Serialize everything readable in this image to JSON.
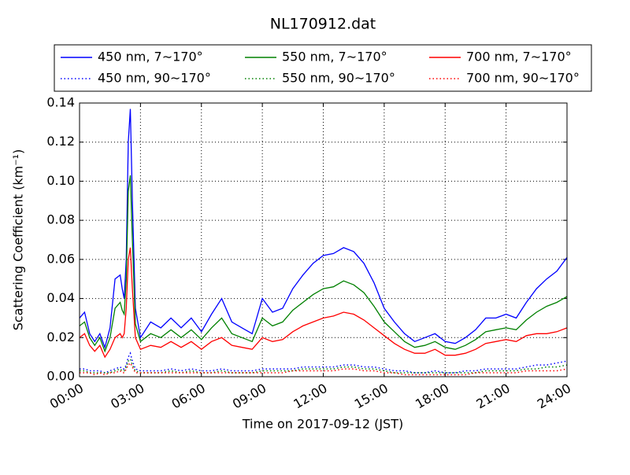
{
  "chart_data": {
    "type": "line",
    "title": "NL170912.dat",
    "xlabel": "Time on 2017-09-12 (JST)",
    "ylabel": "Scattering Coefficient (km⁻¹)",
    "x": [
      0,
      0.25,
      0.5,
      0.75,
      1.0,
      1.25,
      1.5,
      1.75,
      2.0,
      2.1,
      2.2,
      2.3,
      2.4,
      2.5,
      2.6,
      2.75,
      3.0,
      3.5,
      4.0,
      4.5,
      5.0,
      5.5,
      6.0,
      6.5,
      7.0,
      7.5,
      8.0,
      8.5,
      9.0,
      9.5,
      10.0,
      10.5,
      11.0,
      11.5,
      12.0,
      12.5,
      13.0,
      13.5,
      14.0,
      14.5,
      15.0,
      15.5,
      16.0,
      16.5,
      17.0,
      17.5,
      18.0,
      18.5,
      19.0,
      19.5,
      20.0,
      20.5,
      21.0,
      21.5,
      22.0,
      22.5,
      23.0,
      23.5,
      24.0
    ],
    "xlim": [
      0,
      24
    ],
    "xticks": [
      {
        "value": 0,
        "label": "00:00"
      },
      {
        "value": 3,
        "label": "03:00"
      },
      {
        "value": 6,
        "label": "06:00"
      },
      {
        "value": 9,
        "label": "09:00"
      },
      {
        "value": 12,
        "label": "12:00"
      },
      {
        "value": 15,
        "label": "15:00"
      },
      {
        "value": 18,
        "label": "18:00"
      },
      {
        "value": 21,
        "label": "21:00"
      },
      {
        "value": 24,
        "label": "24:00"
      }
    ],
    "ylim": [
      0,
      0.14
    ],
    "yticks": [
      {
        "value": 0,
        "label": "0.00"
      },
      0.02,
      0.04,
      0.06,
      0.08,
      {
        "value": 0.1,
        "label": "0.10"
      },
      0.12,
      0.14
    ],
    "grid": true,
    "legend": "top",
    "series": [
      {
        "name": "450 nm, 7∼170°",
        "color": "#0000ff",
        "linestyle": "solid",
        "values": [
          0.03,
          0.033,
          0.022,
          0.018,
          0.022,
          0.015,
          0.025,
          0.05,
          0.052,
          0.045,
          0.04,
          0.06,
          0.12,
          0.137,
          0.09,
          0.035,
          0.02,
          0.028,
          0.025,
          0.03,
          0.025,
          0.03,
          0.023,
          0.032,
          0.04,
          0.028,
          0.025,
          0.022,
          0.04,
          0.033,
          0.035,
          0.045,
          0.052,
          0.058,
          0.062,
          0.063,
          0.066,
          0.064,
          0.058,
          0.048,
          0.035,
          0.028,
          0.022,
          0.018,
          0.02,
          0.022,
          0.018,
          0.017,
          0.02,
          0.024,
          0.03,
          0.03,
          0.032,
          0.03,
          0.038,
          0.045,
          0.05,
          0.054,
          0.061
        ]
      },
      {
        "name": "450 nm, 90∼170°",
        "color": "#0000ff",
        "linestyle": "dotted",
        "values": [
          0.004,
          0.004,
          0.003,
          0.003,
          0.003,
          0.002,
          0.003,
          0.004,
          0.005,
          0.004,
          0.004,
          0.006,
          0.01,
          0.012,
          0.008,
          0.004,
          0.003,
          0.003,
          0.003,
          0.004,
          0.003,
          0.004,
          0.003,
          0.003,
          0.004,
          0.003,
          0.003,
          0.003,
          0.004,
          0.004,
          0.004,
          0.004,
          0.005,
          0.005,
          0.005,
          0.005,
          0.006,
          0.006,
          0.005,
          0.005,
          0.004,
          0.003,
          0.003,
          0.002,
          0.002,
          0.003,
          0.002,
          0.002,
          0.003,
          0.003,
          0.004,
          0.004,
          0.004,
          0.004,
          0.005,
          0.006,
          0.006,
          0.007,
          0.008
        ]
      },
      {
        "name": "550 nm, 7∼170°",
        "color": "#008000",
        "linestyle": "solid",
        "values": [
          0.026,
          0.028,
          0.02,
          0.016,
          0.02,
          0.013,
          0.02,
          0.035,
          0.038,
          0.034,
          0.032,
          0.05,
          0.095,
          0.103,
          0.07,
          0.027,
          0.018,
          0.022,
          0.02,
          0.024,
          0.02,
          0.024,
          0.019,
          0.025,
          0.03,
          0.022,
          0.02,
          0.018,
          0.03,
          0.026,
          0.028,
          0.034,
          0.038,
          0.042,
          0.045,
          0.046,
          0.049,
          0.047,
          0.043,
          0.036,
          0.028,
          0.023,
          0.018,
          0.015,
          0.016,
          0.018,
          0.015,
          0.014,
          0.016,
          0.019,
          0.023,
          0.024,
          0.025,
          0.024,
          0.029,
          0.033,
          0.036,
          0.038,
          0.041
        ]
      },
      {
        "name": "550 nm, 90∼170°",
        "color": "#008000",
        "linestyle": "dotted",
        "values": [
          0.003,
          0.003,
          0.002,
          0.002,
          0.002,
          0.002,
          0.002,
          0.003,
          0.004,
          0.003,
          0.003,
          0.005,
          0.008,
          0.009,
          0.006,
          0.003,
          0.002,
          0.002,
          0.002,
          0.003,
          0.002,
          0.003,
          0.002,
          0.002,
          0.003,
          0.002,
          0.002,
          0.002,
          0.003,
          0.003,
          0.003,
          0.003,
          0.004,
          0.004,
          0.004,
          0.004,
          0.005,
          0.005,
          0.004,
          0.004,
          0.003,
          0.002,
          0.002,
          0.002,
          0.002,
          0.002,
          0.002,
          0.002,
          0.002,
          0.002,
          0.003,
          0.003,
          0.003,
          0.003,
          0.004,
          0.004,
          0.005,
          0.005,
          0.006
        ]
      },
      {
        "name": "700 nm, 7∼170°",
        "color": "#ff0000",
        "linestyle": "solid",
        "values": [
          0.02,
          0.022,
          0.016,
          0.013,
          0.016,
          0.01,
          0.014,
          0.02,
          0.022,
          0.02,
          0.022,
          0.035,
          0.06,
          0.066,
          0.045,
          0.02,
          0.014,
          0.016,
          0.015,
          0.018,
          0.015,
          0.018,
          0.014,
          0.018,
          0.02,
          0.016,
          0.015,
          0.014,
          0.02,
          0.018,
          0.019,
          0.023,
          0.026,
          0.028,
          0.03,
          0.031,
          0.033,
          0.032,
          0.029,
          0.025,
          0.021,
          0.017,
          0.014,
          0.012,
          0.012,
          0.014,
          0.011,
          0.011,
          0.012,
          0.014,
          0.017,
          0.018,
          0.019,
          0.018,
          0.021,
          0.022,
          0.022,
          0.023,
          0.025
        ]
      },
      {
        "name": "700 nm, 90∼170°",
        "color": "#ff0000",
        "linestyle": "dotted",
        "values": [
          0.002,
          0.002,
          0.002,
          0.001,
          0.002,
          0.001,
          0.002,
          0.002,
          0.003,
          0.002,
          0.002,
          0.004,
          0.006,
          0.007,
          0.005,
          0.002,
          0.002,
          0.002,
          0.002,
          0.002,
          0.002,
          0.002,
          0.002,
          0.002,
          0.002,
          0.002,
          0.002,
          0.002,
          0.002,
          0.002,
          0.002,
          0.003,
          0.003,
          0.003,
          0.003,
          0.003,
          0.004,
          0.004,
          0.003,
          0.003,
          0.002,
          0.002,
          0.001,
          0.001,
          0.001,
          0.001,
          0.001,
          0.001,
          0.001,
          0.002,
          0.002,
          0.002,
          0.002,
          0.002,
          0.003,
          0.003,
          0.003,
          0.003,
          0.004
        ]
      }
    ]
  }
}
